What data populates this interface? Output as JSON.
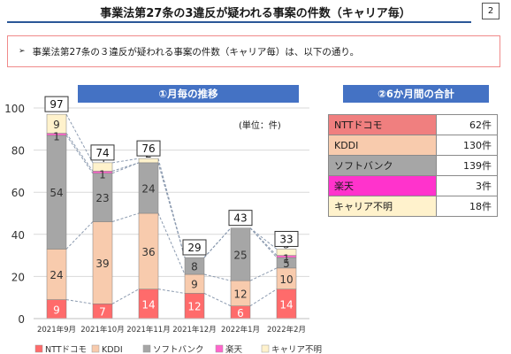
{
  "header": {
    "title": "事業法第27条の3違反が疑われる事案の件数（キャリア毎）",
    "page_number": "2"
  },
  "summary": {
    "arrow_glyph": "➢",
    "text": "事業法第27条の３違反が疑われる事案の件数（キャリア毎）は、以下の通り。"
  },
  "left_banner": "①月毎の推移",
  "right_banner": "②6か月間の合計",
  "unit_label": "(単位：件)",
  "totals": [
    {
      "name": "NTTドコモ",
      "value": "62件",
      "color": "#f07f7f"
    },
    {
      "name": "KDDI",
      "value": "130件",
      "color": "#f8cbad"
    },
    {
      "name": "ソフトバンク",
      "value": "139件",
      "color": "#a6a6a6"
    },
    {
      "name": "楽天",
      "value": "3件",
      "color": "#ff33cc"
    },
    {
      "name": "キャリア不明",
      "value": "18件",
      "color": "#fff2cc"
    }
  ],
  "chart_data": {
    "type": "bar",
    "stacked": true,
    "categories": [
      "2021年9月",
      "2021年10月",
      "2021年11月",
      "2021年12月",
      "2022年1月",
      "2022年2月"
    ],
    "series": [
      {
        "name": "NTTドコモ",
        "values": [
          9,
          7,
          14,
          12,
          6,
          14
        ],
        "color": "#ff6b6b",
        "label_color": "#ffffff"
      },
      {
        "name": "KDDI",
        "values": [
          24,
          39,
          36,
          9,
          12,
          10
        ],
        "color": "#f8cbad",
        "label_color": "#333333"
      },
      {
        "name": "ソフトバンク",
        "values": [
          54,
          23,
          24,
          8,
          25,
          5
        ],
        "color": "#a6a6a6",
        "label_color": "#333333"
      },
      {
        "name": "楽天",
        "values": [
          1,
          1,
          0,
          0,
          0,
          1
        ],
        "color": "#ff66cc",
        "label_color": "#333333"
      },
      {
        "name": "キャリア不明",
        "values": [
          9,
          4,
          2,
          0,
          0,
          3
        ],
        "color": "#fff2cc",
        "label_color": "#333333"
      }
    ],
    "point_labels": [
      [
        "9",
        "24",
        "54",
        "1",
        "9"
      ],
      [
        "7",
        "39",
        "23",
        "1",
        "4"
      ],
      [
        "14",
        "36",
        "24",
        "",
        "2"
      ],
      [
        "12",
        "9",
        "8",
        "",
        ""
      ],
      [
        "6",
        "12",
        "25",
        "",
        ""
      ],
      [
        "14",
        "10",
        "5",
        "1",
        "3"
      ]
    ],
    "totals": [
      97,
      74,
      76,
      29,
      43,
      33
    ],
    "y_ticks": [
      "0",
      "20",
      "40",
      "60",
      "80",
      "100"
    ],
    "ylim": [
      0,
      100
    ],
    "legend_position": "bottom"
  }
}
